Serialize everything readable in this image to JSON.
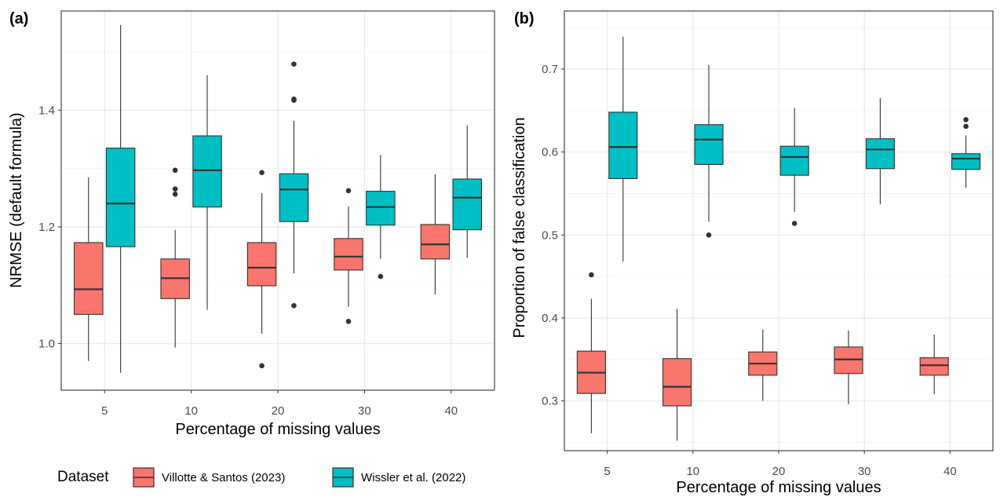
{
  "chart_data": [
    {
      "type": "boxplot",
      "panel": "(a)",
      "xlabel": "Percentage of missing values",
      "ylabel": "NRMSE (default formula)",
      "categories": [
        "5",
        "10",
        "20",
        "30",
        "40"
      ],
      "ylim": [
        0.92,
        1.57
      ],
      "yticks": [
        1.0,
        1.2,
        1.4
      ],
      "ytick_labels": [
        "1.0",
        "1.2",
        "1.4"
      ],
      "grid": true,
      "series": [
        {
          "name": "Villotte & Santos (2023)",
          "color": "#F8766D",
          "boxes": [
            {
              "category": "5",
              "min": 0.97,
              "q1": 1.05,
              "median": 1.093,
              "q3": 1.173,
              "max": 1.285,
              "outliers": []
            },
            {
              "category": "10",
              "min": 0.993,
              "q1": 1.077,
              "median": 1.112,
              "q3": 1.145,
              "max": 1.195,
              "outliers": [
                1.297,
                1.265,
                1.256
              ]
            },
            {
              "category": "20",
              "min": 1.017,
              "q1": 1.099,
              "median": 1.13,
              "q3": 1.173,
              "max": 1.258,
              "outliers": [
                1.293,
                0.962
              ]
            },
            {
              "category": "30",
              "min": 1.063,
              "q1": 1.126,
              "median": 1.149,
              "q3": 1.18,
              "max": 1.235,
              "outliers": [
                1.262,
                1.038
              ]
            },
            {
              "category": "40",
              "min": 1.084,
              "q1": 1.145,
              "median": 1.17,
              "q3": 1.204,
              "max": 1.29,
              "outliers": []
            }
          ]
        },
        {
          "name": "Wissler et al. (2022)",
          "color": "#00BFC4",
          "boxes": [
            {
              "category": "5",
              "min": 0.95,
              "q1": 1.166,
              "median": 1.24,
              "q3": 1.335,
              "max": 1.546,
              "outliers": []
            },
            {
              "category": "10",
              "min": 1.058,
              "q1": 1.234,
              "median": 1.297,
              "q3": 1.356,
              "max": 1.46,
              "outliers": []
            },
            {
              "category": "20",
              "min": 1.12,
              "q1": 1.209,
              "median": 1.264,
              "q3": 1.291,
              "max": 1.382,
              "outliers": [
                1.479,
                1.419,
                1.417,
                1.065
              ]
            },
            {
              "category": "30",
              "min": 1.145,
              "q1": 1.203,
              "median": 1.234,
              "q3": 1.261,
              "max": 1.323,
              "outliers": [
                1.115
              ]
            },
            {
              "category": "40",
              "min": 1.147,
              "q1": 1.195,
              "median": 1.25,
              "q3": 1.282,
              "max": 1.374,
              "outliers": []
            }
          ]
        }
      ]
    },
    {
      "type": "boxplot",
      "panel": "(b)",
      "xlabel": "Percentage of missing values",
      "ylabel": "Proportion of false classification",
      "categories": [
        "5",
        "10",
        "20",
        "30",
        "40"
      ],
      "ylim": [
        0.24,
        0.77
      ],
      "yticks": [
        0.3,
        0.4,
        0.5,
        0.6,
        0.7
      ],
      "ytick_labels": [
        "0.3",
        "0.4",
        "0.5",
        "0.6",
        "0.7"
      ],
      "grid": true,
      "series": [
        {
          "name": "Villotte & Santos (2023)",
          "color": "#F8766D",
          "boxes": [
            {
              "category": "5",
              "min": 0.261,
              "q1": 0.309,
              "median": 0.334,
              "q3": 0.36,
              "max": 0.423,
              "outliers": [
                0.452
              ]
            },
            {
              "category": "10",
              "min": 0.252,
              "q1": 0.294,
              "median": 0.317,
              "q3": 0.351,
              "max": 0.411,
              "outliers": []
            },
            {
              "category": "20",
              "min": 0.3,
              "q1": 0.331,
              "median": 0.345,
              "q3": 0.359,
              "max": 0.386,
              "outliers": []
            },
            {
              "category": "30",
              "min": 0.296,
              "q1": 0.333,
              "median": 0.35,
              "q3": 0.365,
              "max": 0.385,
              "outliers": []
            },
            {
              "category": "40",
              "min": 0.308,
              "q1": 0.331,
              "median": 0.343,
              "q3": 0.352,
              "max": 0.38,
              "outliers": []
            }
          ]
        },
        {
          "name": "Wissler et al. (2022)",
          "color": "#00BFC4",
          "boxes": [
            {
              "category": "5",
              "min": 0.468,
              "q1": 0.568,
              "median": 0.606,
              "q3": 0.648,
              "max": 0.739,
              "outliers": []
            },
            {
              "category": "10",
              "min": 0.516,
              "q1": 0.585,
              "median": 0.615,
              "q3": 0.633,
              "max": 0.705,
              "outliers": [
                0.5
              ]
            },
            {
              "category": "20",
              "min": 0.528,
              "q1": 0.572,
              "median": 0.594,
              "q3": 0.607,
              "max": 0.653,
              "outliers": [
                0.514
              ]
            },
            {
              "category": "30",
              "min": 0.537,
              "q1": 0.58,
              "median": 0.603,
              "q3": 0.616,
              "max": 0.665,
              "outliers": []
            },
            {
              "category": "40",
              "min": 0.557,
              "q1": 0.579,
              "median": 0.592,
              "q3": 0.598,
              "max": 0.62,
              "outliers": [
                0.639,
                0.631
              ]
            }
          ]
        }
      ]
    }
  ],
  "legend": {
    "title": "Dataset",
    "items": [
      {
        "label": "Villotte & Santos (2023)",
        "color": "#F8766D"
      },
      {
        "label": "Wissler et al. (2022)",
        "color": "#00BFC4"
      }
    ]
  }
}
